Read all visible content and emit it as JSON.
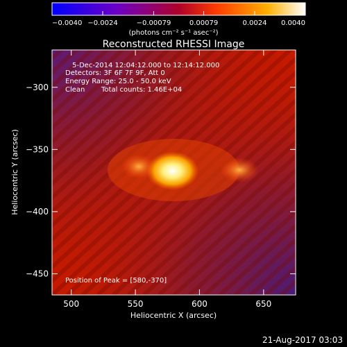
{
  "chart_data": {
    "type": "heatmap",
    "title": "Reconstructed RHESSI Image",
    "xlabel": "Heliocentric X (arcsec)",
    "ylabel": "Heliocentric Y (arcsec)",
    "xlim": [
      485,
      675
    ],
    "ylim": [
      -467,
      -270
    ],
    "x_ticks": [
      {
        "value": 500,
        "label": "500"
      },
      {
        "value": 550,
        "label": "550"
      },
      {
        "value": 600,
        "label": "600"
      },
      {
        "value": 650,
        "label": "650"
      }
    ],
    "y_ticks": [
      {
        "value": -300,
        "label": "−300"
      },
      {
        "value": -350,
        "label": "−350"
      },
      {
        "value": -400,
        "label": "−400"
      },
      {
        "value": -450,
        "label": "−450"
      }
    ],
    "colorbar": {
      "range": [
        -0.004,
        0.004
      ],
      "tick_values": [
        -0.004,
        -0.0024,
        -0.00079,
        0.00079,
        0.0024,
        0.004
      ],
      "tick_labels": [
        "−0.0040",
        "−0.0024",
        "−0.00079",
        "0.00079",
        "0.0024",
        "0.0040"
      ],
      "unit_label": "(photons cm⁻² s⁻¹ asec⁻²)",
      "colors": [
        "#0000ff",
        "#6a00c8",
        "#b0002a",
        "#ff3c00",
        "#ffb000",
        "#ffffff"
      ]
    },
    "annotations": {
      "time_range": "5-Dec-2014 12:04:12.000 to 12:14:12.000",
      "detectors": "Detectors: 3F 6F 7F 9F, Att 0",
      "energy": "Energy Range: 25.0 - 50.0 keV",
      "method": "Clean",
      "total_counts": "Total counts: 1.46E+04",
      "peak": "Position of Peak = [580,-370]"
    },
    "peak": {
      "x": 580,
      "y": -370
    },
    "background_color": "#000000"
  },
  "footer": {
    "timestamp": "21-Aug-2017 03:03"
  }
}
